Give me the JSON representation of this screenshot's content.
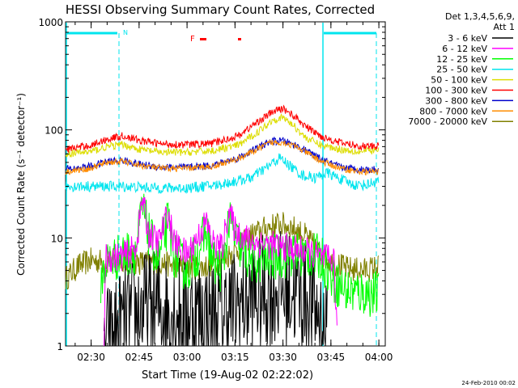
{
  "chart_data": {
    "type": "line",
    "title": "HESSI Observing Summary Count Rates, Corrected",
    "xlabel": "Start Time (19-Aug-02 02:22:02)",
    "ylabel": "Corrected Count Rate (s⁻¹ detector⁻¹)",
    "y_scale": "log",
    "ylim": [
      1,
      1000
    ],
    "xlim_minutes_utc": [
      142,
      242
    ],
    "x_ticks": [
      {
        "label": "02:30",
        "minutes": 150
      },
      {
        "label": "02:45",
        "minutes": 165
      },
      {
        "label": "03:00",
        "minutes": 180
      },
      {
        "label": "03:15",
        "minutes": 195
      },
      {
        "label": "03:30",
        "minutes": 210
      },
      {
        "label": "03:45",
        "minutes": 225
      },
      {
        "label": "04:00",
        "minutes": 240
      }
    ],
    "y_ticks": [
      {
        "label": "1",
        "value": 1
      },
      {
        "label": "10",
        "value": 10
      },
      {
        "label": "100",
        "value": 100
      },
      {
        "label": "1000",
        "value": 1000
      }
    ],
    "legend_title_1": "Det 1,3,4,5,6,9,",
    "legend_title_2": "Att 1",
    "legend_position": "right",
    "series": [
      {
        "name": "3 - 6 keV",
        "color": "#000000",
        "points": [
          [
            154,
            1.0
          ],
          [
            160,
            1.6
          ],
          [
            166,
            2.2
          ],
          [
            172,
            2.2
          ],
          [
            180,
            2.0
          ],
          [
            188,
            1.9
          ],
          [
            196,
            2.4
          ],
          [
            203,
            3.0
          ],
          [
            208,
            3.4
          ],
          [
            213,
            3.3
          ],
          [
            218,
            2.7
          ],
          [
            222,
            1.8
          ],
          [
            224,
            1.0
          ]
        ]
      },
      {
        "name": "6 - 12 keV",
        "color": "#ff00ff",
        "points": [
          [
            154,
            1.0
          ],
          [
            154.5,
            6.5
          ],
          [
            160,
            6.8
          ],
          [
            164,
            8.0
          ],
          [
            166,
            23
          ],
          [
            168,
            11
          ],
          [
            171,
            9
          ],
          [
            174,
            17
          ],
          [
            176,
            9
          ],
          [
            180,
            7
          ],
          [
            184,
            11
          ],
          [
            186,
            14
          ],
          [
            188,
            9
          ],
          [
            191,
            8
          ],
          [
            193,
            18
          ],
          [
            195,
            12
          ],
          [
            198,
            10
          ],
          [
            202,
            9
          ],
          [
            207,
            8.5
          ],
          [
            212,
            8
          ],
          [
            217,
            7.5
          ],
          [
            222,
            6.5
          ],
          [
            223,
            6.4
          ],
          [
            226,
            6.3
          ],
          [
            227,
            1.0
          ]
        ]
      },
      {
        "name": "12 - 25 keV",
        "color": "#00ff00",
        "points": [
          [
            153,
            4.0
          ],
          [
            155,
            6
          ],
          [
            160,
            7
          ],
          [
            164,
            7.5
          ],
          [
            166,
            19
          ],
          [
            168,
            11
          ],
          [
            171,
            6
          ],
          [
            174,
            14
          ],
          [
            176,
            7
          ],
          [
            180,
            5
          ],
          [
            184,
            8
          ],
          [
            186,
            12
          ],
          [
            188,
            6
          ],
          [
            191,
            5
          ],
          [
            193,
            14
          ],
          [
            195,
            10
          ],
          [
            198,
            7
          ],
          [
            201,
            6
          ],
          [
            206,
            6.5
          ],
          [
            212,
            7
          ],
          [
            218,
            7
          ],
          [
            222,
            6.5
          ],
          [
            226,
            4.0
          ],
          [
            230,
            3.2
          ],
          [
            240,
            3.0
          ]
        ]
      },
      {
        "name": "25 - 50 keV",
        "color": "#00e5ee",
        "points": [
          [
            142,
            30
          ],
          [
            150,
            30
          ],
          [
            160,
            30
          ],
          [
            170,
            29
          ],
          [
            180,
            29
          ],
          [
            190,
            31
          ],
          [
            200,
            36
          ],
          [
            205,
            45
          ],
          [
            209,
            55
          ],
          [
            212,
            47
          ],
          [
            216,
            38
          ],
          [
            220,
            36
          ],
          [
            224,
            40
          ],
          [
            228,
            35
          ],
          [
            232,
            31
          ],
          [
            236,
            31
          ],
          [
            240,
            34
          ]
        ]
      },
      {
        "name": "50 - 100 keV",
        "color": "#dddd00",
        "points": [
          [
            142,
            60
          ],
          [
            150,
            63
          ],
          [
            155,
            70
          ],
          [
            160,
            73
          ],
          [
            165,
            66
          ],
          [
            172,
            62
          ],
          [
            180,
            62
          ],
          [
            188,
            64
          ],
          [
            196,
            72
          ],
          [
            202,
            95
          ],
          [
            207,
            125
          ],
          [
            210,
            130
          ],
          [
            213,
            112
          ],
          [
            217,
            85
          ],
          [
            222,
            72
          ],
          [
            228,
            66
          ],
          [
            234,
            63
          ],
          [
            240,
            65
          ]
        ]
      },
      {
        "name": "100 - 300 keV",
        "color": "#ff0000",
        "points": [
          [
            142,
            66
          ],
          [
            150,
            72
          ],
          [
            155,
            82
          ],
          [
            160,
            88
          ],
          [
            165,
            80
          ],
          [
            172,
            74
          ],
          [
            180,
            73
          ],
          [
            188,
            75
          ],
          [
            196,
            88
          ],
          [
            202,
            118
          ],
          [
            207,
            148
          ],
          [
            210,
            158
          ],
          [
            213,
            138
          ],
          [
            217,
            108
          ],
          [
            222,
            87
          ],
          [
            228,
            76
          ],
          [
            234,
            71
          ],
          [
            240,
            70
          ]
        ]
      },
      {
        "name": "300 - 800 keV",
        "color": "#0000cc",
        "points": [
          [
            142,
            43
          ],
          [
            150,
            46
          ],
          [
            155,
            51
          ],
          [
            160,
            52
          ],
          [
            165,
            48
          ],
          [
            172,
            45
          ],
          [
            180,
            45
          ],
          [
            188,
            47
          ],
          [
            196,
            55
          ],
          [
            202,
            68
          ],
          [
            206,
            78
          ],
          [
            210,
            79
          ],
          [
            214,
            72
          ],
          [
            218,
            62
          ],
          [
            222,
            53
          ],
          [
            228,
            45
          ],
          [
            234,
            43
          ],
          [
            240,
            43
          ]
        ]
      },
      {
        "name": "800 - 7000 keV",
        "color": "#ff8c00",
        "points": [
          [
            142,
            41
          ],
          [
            150,
            44
          ],
          [
            155,
            50
          ],
          [
            160,
            51
          ],
          [
            165,
            47
          ],
          [
            172,
            44
          ],
          [
            180,
            44
          ],
          [
            188,
            46
          ],
          [
            196,
            54
          ],
          [
            202,
            66
          ],
          [
            206,
            76
          ],
          [
            210,
            77
          ],
          [
            214,
            70
          ],
          [
            218,
            60
          ],
          [
            222,
            51
          ],
          [
            228,
            44
          ],
          [
            234,
            41
          ],
          [
            240,
            41
          ]
        ]
      },
      {
        "name": "7000 - 20000 keV",
        "color": "#808000",
        "points": [
          [
            142,
            4.2
          ],
          [
            146,
            5.5
          ],
          [
            150,
            6.2
          ],
          [
            155,
            6.0
          ],
          [
            160,
            6.4
          ],
          [
            165,
            5.9
          ],
          [
            170,
            6.0
          ],
          [
            175,
            5.6
          ],
          [
            180,
            5.5
          ],
          [
            185,
            5.3
          ],
          [
            190,
            6.2
          ],
          [
            195,
            7.5
          ],
          [
            200,
            10.5
          ],
          [
            205,
            12.5
          ],
          [
            209,
            13.5
          ],
          [
            213,
            12.5
          ],
          [
            217,
            10.5
          ],
          [
            221,
            7.5
          ],
          [
            225,
            6.0
          ],
          [
            230,
            5.2
          ],
          [
            235,
            5.0
          ],
          [
            240,
            5.4
          ]
        ]
      }
    ],
    "annotations": {
      "attenuator_marker": "N",
      "flare_marker": "F"
    },
    "footer_date": "24-Feb-2010 00:02"
  }
}
